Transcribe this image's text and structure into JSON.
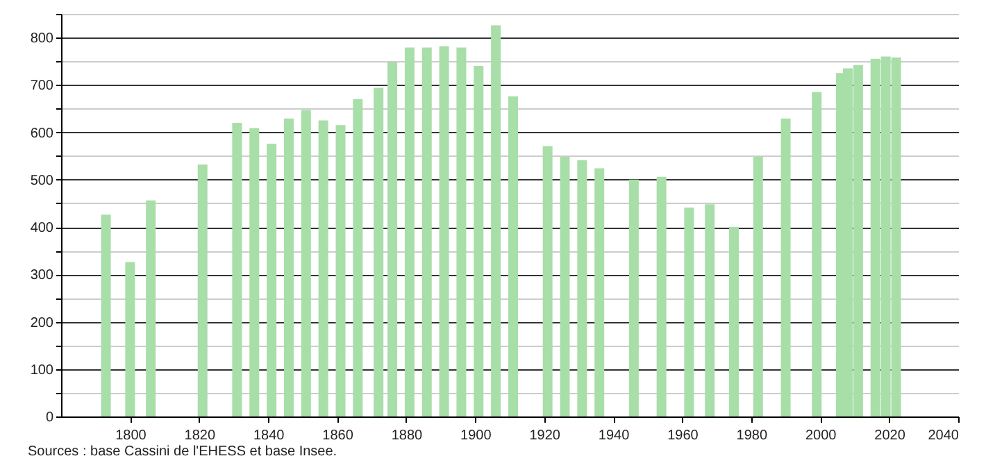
{
  "chart_data": {
    "type": "bar",
    "x": [
      1793,
      1800,
      1806,
      1821,
      1831,
      1836,
      1841,
      1846,
      1851,
      1856,
      1861,
      1866,
      1872,
      1876,
      1881,
      1886,
      1891,
      1896,
      1901,
      1906,
      1911,
      1921,
      1926,
      1931,
      1936,
      1946,
      1954,
      1962,
      1968,
      1975,
      1982,
      1990,
      1999,
      2006,
      2008,
      2011,
      2016,
      2019,
      2022
    ],
    "values": [
      426,
      326,
      456,
      532,
      620,
      609,
      576,
      629,
      647,
      625,
      615,
      670,
      694,
      748,
      779,
      779,
      782,
      779,
      740,
      826,
      676,
      571,
      548,
      541,
      524,
      500,
      506,
      441,
      448,
      400,
      549,
      629,
      685,
      725,
      735,
      742,
      755,
      760,
      758
    ],
    "color": "#a8dea8",
    "xlim": [
      1780,
      2040
    ],
    "xticks": [
      1800,
      1820,
      1840,
      1860,
      1880,
      1900,
      1920,
      1940,
      1960,
      1980,
      2000,
      2020,
      2040
    ],
    "ylim": [
      0,
      850
    ],
    "yticks": [
      0,
      {
        "value": 50,
        "label": null
      },
      100,
      {
        "value": 150,
        "label": null
      },
      200,
      {
        "value": 250,
        "label": null
      },
      300,
      {
        "value": 350,
        "label": null
      },
      400,
      {
        "value": 450,
        "label": null
      },
      500,
      {
        "value": 550,
        "label": null
      },
      600,
      {
        "value": 650,
        "label": null
      },
      700,
      {
        "value": 750,
        "label": null
      },
      800,
      {
        "value": 850,
        "label": null
      }
    ],
    "grid": "y",
    "annotations": [
      "Sources : base Cassini de l'EHESS et base Insee."
    ]
  }
}
